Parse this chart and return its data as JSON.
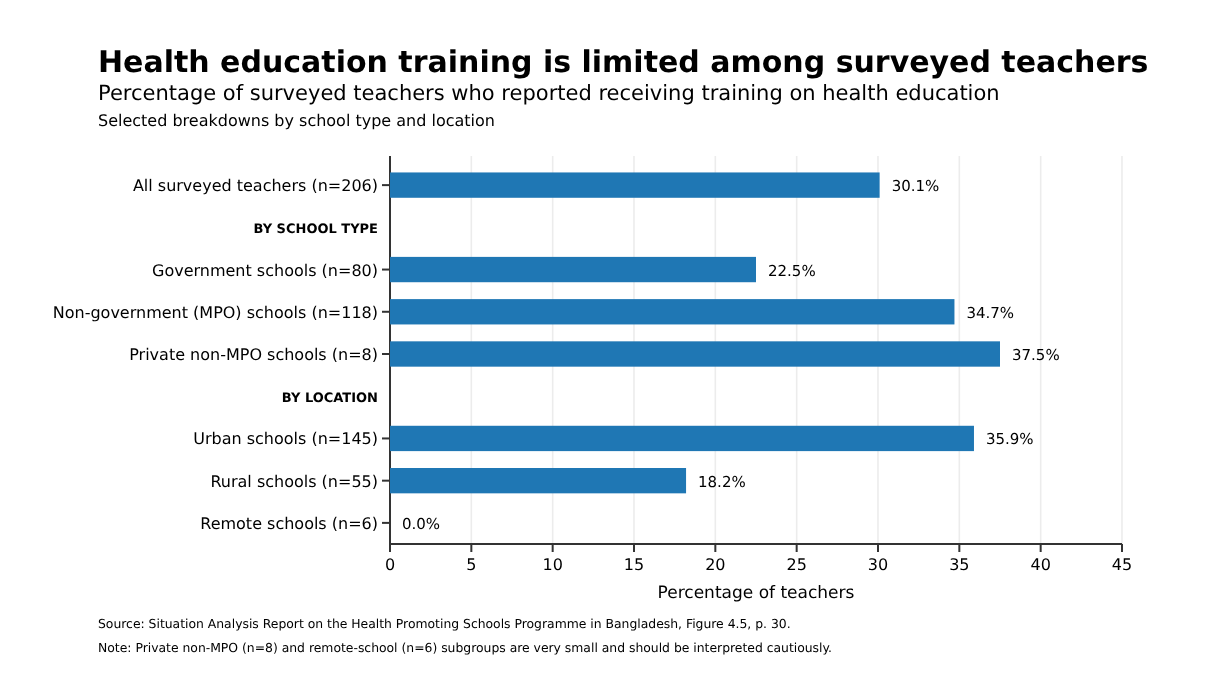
{
  "chart_data": {
    "type": "bar",
    "orientation": "horizontal",
    "title": "Health education training is limited among surveyed teachers",
    "subtitle": "Percentage of surveyed teachers who reported receiving training on health education\nSelected breakdowns by school type and location",
    "categories": [
      "All surveyed teachers (n=206)",
      "BY SCHOOL TYPE",
      "Government schools (n=80)",
      "Non-government (MPO) schools (n=118)",
      "Private non-MPO schools (n=8)",
      "BY LOCATION",
      "Urban schools (n=145)",
      "Rural schools (n=55)",
      "Remote schools (n=6)"
    ],
    "values": [
      30.1,
      null,
      22.5,
      34.7,
      37.5,
      null,
      35.9,
      18.2,
      0.0
    ],
    "value_labels": [
      "30.1%",
      null,
      "22.5%",
      "34.7%",
      "37.5%",
      null,
      "35.9%",
      "18.2%",
      "0.0%"
    ],
    "color": "#1f77b4",
    "xlim": [
      0,
      45
    ],
    "xticks": [
      0,
      5,
      10,
      15,
      20,
      25,
      30,
      35,
      40,
      45
    ],
    "grid": "x",
    "xlabel": "Percentage of teachers",
    "annotations": [
      "Source: Situation Analysis Report on the Health Promoting Schools Programme in Bangladesh, Figure 4.5, p. 30.",
      "Note: Private non-MPO (n=8) and remote-school (n=6) subgroups are very small and should be interpreted cautiously."
    ]
  }
}
